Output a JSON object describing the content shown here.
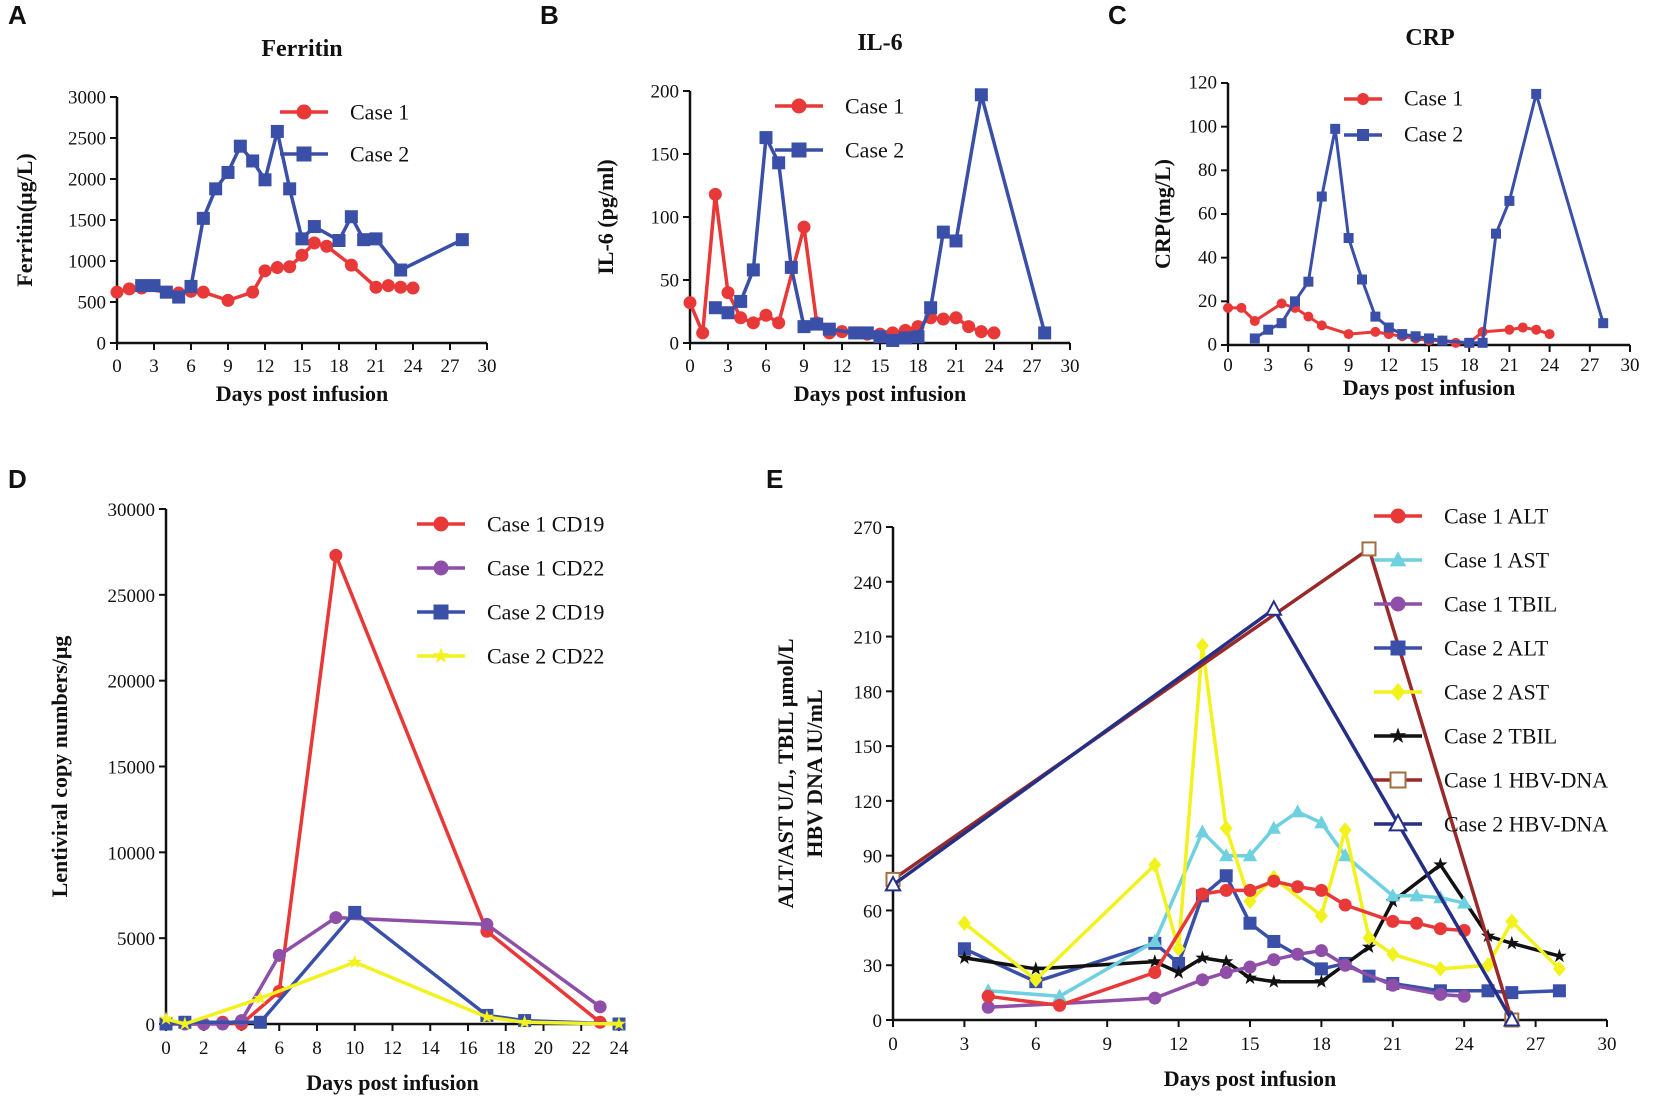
{
  "colors": {
    "red": "#e83838",
    "blue": "#3a4fa8",
    "purple": "#8f4fa8",
    "cyan": "#6fd0df",
    "yellow": "#f2f21e",
    "black": "#111111",
    "brown": "#9a2a2a",
    "navy": "#262f86",
    "brownMarker": "#a27040"
  },
  "chart_data": [
    {
      "panel": "A",
      "type": "line",
      "title": "Ferritin",
      "xlabel": "Days post infusion",
      "ylabel": "Ferritin(μg/L)",
      "xlim": [
        0,
        30
      ],
      "ylim": [
        0,
        3000
      ],
      "xticks": [
        0,
        3,
        6,
        9,
        12,
        15,
        18,
        21,
        24,
        27,
        30
      ],
      "yticks": [
        0,
        500,
        1000,
        1500,
        2000,
        2500,
        3000
      ],
      "series": [
        {
          "name": "Case 1",
          "color": "red",
          "marker": "circle",
          "x": [
            0,
            1,
            2,
            4,
            5,
            6,
            7,
            9,
            11,
            12,
            13,
            14,
            15,
            16,
            17,
            19,
            21,
            22,
            23,
            24
          ],
          "y": [
            620,
            660,
            670,
            620,
            610,
            630,
            620,
            520,
            620,
            880,
            920,
            930,
            1070,
            1220,
            1180,
            950,
            680,
            700,
            680,
            670
          ]
        },
        {
          "name": "Case 2",
          "color": "blue",
          "marker": "square",
          "x": [
            2,
            3,
            4,
            5,
            6,
            7,
            8,
            9,
            10,
            11,
            12,
            13,
            14,
            15,
            16,
            18,
            19,
            20,
            21,
            23,
            28
          ],
          "y": [
            700,
            700,
            620,
            560,
            690,
            1520,
            1880,
            2080,
            2400,
            2220,
            1990,
            2580,
            1880,
            1270,
            1420,
            1250,
            1540,
            1260,
            1270,
            890,
            1260
          ]
        }
      ]
    },
    {
      "panel": "B",
      "type": "line",
      "title": "IL-6",
      "xlabel": "Days post infusion",
      "ylabel": "IL-6 (pg/ml)",
      "xlim": [
        0,
        30
      ],
      "ylim": [
        0,
        200
      ],
      "xticks": [
        0,
        3,
        6,
        9,
        12,
        15,
        18,
        21,
        24,
        27,
        30
      ],
      "yticks": [
        0,
        50,
        100,
        150,
        200
      ],
      "series": [
        {
          "name": "Case 1",
          "color": "red",
          "marker": "circle",
          "x": [
            0,
            1,
            2,
            3,
            4,
            5,
            6,
            7,
            9,
            10,
            11,
            12,
            13,
            14,
            15,
            16,
            17,
            18,
            19,
            20,
            21,
            22,
            23,
            24
          ],
          "y": [
            32,
            8,
            118,
            40,
            20,
            16,
            22,
            16,
            92,
            16,
            8,
            9,
            8,
            7,
            7,
            8,
            10,
            13,
            20,
            19,
            20,
            13,
            9,
            8
          ]
        },
        {
          "name": "Case 2",
          "color": "blue",
          "marker": "square",
          "x": [
            2,
            3,
            4,
            5,
            6,
            7,
            8,
            9,
            10,
            11,
            13,
            14,
            15,
            16,
            17,
            18,
            19,
            20,
            21,
            23,
            28
          ],
          "y": [
            28,
            24,
            33,
            58,
            163,
            143,
            60,
            13,
            15,
            11,
            8,
            8,
            5,
            2,
            4,
            5,
            28,
            88,
            81,
            197,
            8
          ]
        }
      ]
    },
    {
      "panel": "C",
      "type": "line",
      "title": "CRP",
      "xlabel": "Days post infusion",
      "ylabel": "CRP(mg/L)",
      "xlim": [
        0,
        30
      ],
      "ylim": [
        0,
        120
      ],
      "xticks": [
        0,
        3,
        6,
        9,
        12,
        15,
        18,
        21,
        24,
        27,
        30
      ],
      "yticks": [
        0,
        20,
        40,
        60,
        80,
        100,
        120
      ],
      "series": [
        {
          "name": "Case 1",
          "color": "red",
          "marker": "circle",
          "x": [
            0,
            1,
            2,
            4,
            5,
            6,
            7,
            9,
            11,
            12,
            13,
            14,
            15,
            16,
            17,
            18,
            19,
            21,
            22,
            23,
            24
          ],
          "y": [
            17,
            17,
            11,
            19,
            17,
            13,
            9,
            5,
            6,
            5,
            4,
            3,
            2,
            2,
            1,
            1,
            6,
            7,
            8,
            7,
            5
          ]
        },
        {
          "name": "Case 2",
          "color": "blue",
          "marker": "square",
          "x": [
            2,
            3,
            4,
            5,
            6,
            7,
            8,
            9,
            10,
            11,
            12,
            13,
            14,
            15,
            16,
            18,
            19,
            20,
            21,
            23,
            28
          ],
          "y": [
            3,
            7,
            10,
            20,
            29,
            68,
            99,
            49,
            30,
            13,
            8,
            5,
            4,
            3,
            2,
            1,
            1,
            51,
            66,
            115,
            10
          ]
        }
      ]
    },
    {
      "panel": "D",
      "type": "line",
      "title": "",
      "xlabel": "Days post infusion",
      "ylabel": "Lentiviral copy numbers/μg",
      "xlim": [
        0,
        24
      ],
      "ylim": [
        0,
        30000
      ],
      "xticks": [
        0,
        2,
        4,
        6,
        8,
        10,
        12,
        14,
        16,
        18,
        20,
        22,
        24
      ],
      "yticks": [
        0,
        5000,
        10000,
        15000,
        20000,
        25000,
        30000
      ],
      "series": [
        {
          "name": "Case 1 CD19",
          "color": "red",
          "marker": "circle",
          "x": [
            0,
            1,
            2,
            3,
            4,
            6,
            9,
            17,
            23
          ],
          "y": [
            0,
            0,
            0,
            100,
            0,
            1900,
            27300,
            5400,
            100
          ]
        },
        {
          "name": "Case 1 CD22",
          "color": "purple",
          "marker": "circle",
          "x": [
            0,
            1,
            2,
            3,
            4,
            6,
            9,
            17,
            23
          ],
          "y": [
            0,
            0,
            0,
            0,
            200,
            4000,
            6200,
            5800,
            1000
          ]
        },
        {
          "name": "Case 2 CD19",
          "color": "blue",
          "marker": "square",
          "x": [
            0,
            1,
            5,
            10,
            17,
            19,
            24
          ],
          "y": [
            0,
            100,
            100,
            6500,
            500,
            200,
            0
          ]
        },
        {
          "name": "Case 2 CD22",
          "color": "yellow",
          "marker": "star",
          "x": [
            0,
            1,
            5,
            10,
            17,
            19,
            24
          ],
          "y": [
            300,
            0,
            1500,
            3600,
            400,
            100,
            0
          ]
        }
      ]
    },
    {
      "panel": "E",
      "type": "line",
      "title": "",
      "xlabel": "Days post infusion",
      "ylabel_line1": "ALT/AST U/L, TBIL μmol/L",
      "ylabel_line2": "HBV DNA IU/mL",
      "xlim": [
        0,
        30
      ],
      "ylim": [
        0,
        270
      ],
      "xticks": [
        0,
        3,
        6,
        9,
        12,
        15,
        18,
        21,
        24,
        27,
        30
      ],
      "yticks": [
        0,
        30,
        60,
        90,
        120,
        150,
        180,
        210,
        240,
        270
      ],
      "series": [
        {
          "name": "Case 2 ALT",
          "color": "blue",
          "marker": "square",
          "x": [
            3,
            6,
            11,
            12,
            13,
            14,
            15,
            16,
            18,
            19,
            20,
            21,
            23,
            25,
            26,
            28
          ],
          "y": [
            39,
            21,
            42,
            31,
            68,
            79,
            53,
            43,
            28,
            31,
            24,
            20,
            16,
            16,
            15,
            16
          ]
        },
        {
          "name": "Case 2 TBIL",
          "color": "black",
          "marker": "star",
          "x": [
            3,
            6,
            11,
            12,
            13,
            14,
            15,
            16,
            18,
            20,
            21,
            23,
            25,
            26,
            28
          ],
          "y": [
            34,
            28,
            32,
            26,
            34,
            32,
            23,
            21,
            21,
            40,
            65,
            85,
            46,
            42,
            35
          ]
        },
        {
          "name": "Case 1 TBIL",
          "color": "purple",
          "marker": "circle",
          "x": [
            4,
            7,
            11,
            13,
            14,
            15,
            16,
            17,
            18,
            19,
            21,
            23,
            24
          ],
          "y": [
            7,
            9,
            12,
            22,
            26,
            29,
            33,
            36,
            38,
            30,
            19,
            14,
            13
          ]
        },
        {
          "name": "Case 1 AST",
          "color": "cyan",
          "marker": "triangle",
          "x": [
            4,
            7,
            11,
            13,
            14,
            15,
            16,
            17,
            18,
            19,
            21,
            22,
            23,
            24
          ],
          "y": [
            16,
            13,
            43,
            103,
            90,
            90,
            105,
            114,
            108,
            90,
            68,
            68,
            67,
            64
          ]
        },
        {
          "name": "Case 2 AST",
          "color": "yellow",
          "marker": "diamond",
          "x": [
            3,
            6,
            11,
            12,
            13,
            14,
            15,
            16,
            18,
            19,
            20,
            21,
            23,
            25,
            26,
            28
          ],
          "y": [
            53,
            22,
            85,
            39,
            205,
            105,
            65,
            78,
            57,
            104,
            45,
            36,
            28,
            30,
            54,
            28
          ]
        },
        {
          "name": "Case 1 ALT",
          "color": "red",
          "marker": "circle",
          "x": [
            4,
            7,
            11,
            13,
            14,
            15,
            16,
            17,
            18,
            19,
            21,
            22,
            23,
            24
          ],
          "y": [
            13,
            8,
            26,
            69,
            71,
            71,
            76,
            73,
            71,
            63,
            54,
            53,
            50,
            49
          ]
        },
        {
          "name": "Case 1 HBV-DNA",
          "color": "brown",
          "markerColor": "brownMarker",
          "marker": "open-square",
          "x": [
            0,
            20,
            26
          ],
          "y": [
            77,
            258,
            0
          ]
        },
        {
          "name": "Case 2 HBV-DNA",
          "color": "navy",
          "marker": "open-triangle",
          "x": [
            0,
            16,
            26
          ],
          "y": [
            74,
            225,
            0
          ]
        }
      ],
      "legend_order": [
        "Case 1 ALT",
        "Case 1 AST",
        "Case 1 TBIL",
        "Case 2 ALT",
        "Case 2 AST",
        "Case 2 TBIL",
        "Case 1 HBV-DNA",
        "Case 2 HBV-DNA"
      ]
    }
  ]
}
